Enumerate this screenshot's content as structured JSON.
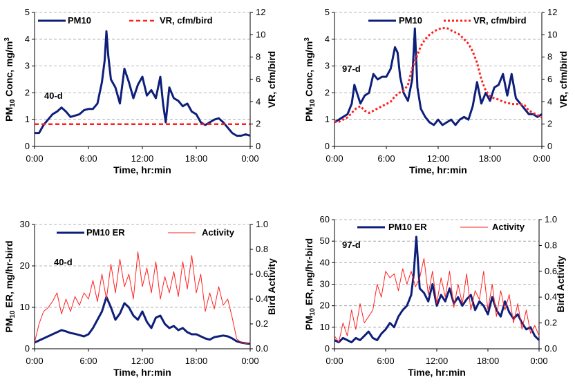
{
  "chart_data": [
    {
      "type": "line",
      "annotation": "40-d",
      "x_ticks": [
        "0:00",
        "6:00",
        "12:00",
        "18:00",
        "0:00"
      ],
      "xlabel": "Time, hr:min",
      "ylabel_left": {
        "pre": "PM",
        "sub": "10",
        "mid": " Conc, mg/m",
        "sup": "3"
      },
      "ylabel_right": "VR, cfm/bird",
      "ylim_left": [
        0,
        5
      ],
      "yticks_left": [
        0,
        1,
        2,
        3,
        4,
        5
      ],
      "ylim_right": [
        0,
        12
      ],
      "yticks_right": [
        0,
        2,
        4,
        6,
        8,
        10,
        12
      ],
      "xlim": [
        0,
        24
      ],
      "legend": [
        "PM10",
        "VR, cfm/bird"
      ],
      "colors": {
        "primary": "#0d1f7a",
        "secondary": "#ff2020"
      },
      "series": [
        {
          "name": "PM10",
          "axis": "left",
          "style": "solid",
          "x": [
            0,
            0.5,
            1,
            1.5,
            2,
            2.5,
            3,
            3.5,
            4,
            4.5,
            5,
            5.5,
            6,
            6.5,
            7,
            7.5,
            7.8,
            8,
            8.2,
            8.5,
            9,
            9.5,
            10,
            10.5,
            11,
            11.5,
            12,
            12.5,
            13,
            13.5,
            14,
            14.3,
            14.6,
            15,
            15.5,
            16,
            16.5,
            17,
            17.5,
            18,
            18.5,
            19,
            19.5,
            20,
            20.5,
            21,
            21.5,
            22,
            22.5,
            23,
            23.5,
            24
          ],
          "y": [
            0.5,
            0.5,
            0.8,
            1.0,
            1.2,
            1.3,
            1.45,
            1.3,
            1.1,
            1.15,
            1.2,
            1.35,
            1.4,
            1.4,
            1.6,
            2.4,
            3.2,
            4.3,
            3.4,
            2.5,
            2.2,
            1.6,
            2.9,
            2.4,
            1.8,
            2.3,
            2.6,
            1.9,
            2.1,
            1.8,
            2.6,
            1.6,
            0.9,
            2.2,
            1.8,
            1.7,
            1.5,
            1.6,
            1.3,
            1.2,
            0.9,
            0.8,
            0.9,
            1.0,
            1.05,
            0.9,
            0.7,
            0.5,
            0.4,
            0.4,
            0.45,
            0.4
          ]
        },
        {
          "name": "VR, cfm/bird",
          "axis": "right",
          "style": "dashed",
          "x": [
            0,
            24
          ],
          "y": [
            2,
            2
          ]
        }
      ]
    },
    {
      "type": "line",
      "annotation": "97-d",
      "x_ticks": [
        "0:00",
        "6:00",
        "12:00",
        "18:00",
        "0:00"
      ],
      "xlabel": "Time, hr:min",
      "ylabel_left": {
        "pre": "PM",
        "sub": "10",
        "mid": " Conc, mg/m",
        "sup": "3"
      },
      "ylabel_right": "VR, cfm/bird",
      "ylim_left": [
        0,
        5
      ],
      "yticks_left": [
        0,
        1,
        2,
        3,
        4,
        5
      ],
      "ylim_right": [
        0,
        12
      ],
      "yticks_right": [
        0,
        2,
        4,
        6,
        8,
        10,
        12
      ],
      "xlim": [
        0,
        24
      ],
      "legend": [
        "PM10",
        "VR, cfm/bird"
      ],
      "colors": {
        "primary": "#0d1f7a",
        "secondary": "#ff2020"
      },
      "series": [
        {
          "name": "PM10",
          "axis": "left",
          "style": "solid",
          "x": [
            0,
            0.5,
            1,
            1.5,
            2,
            2.3,
            2.6,
            3,
            3.5,
            4,
            4.5,
            5,
            5.5,
            6,
            6.5,
            7,
            7.3,
            7.6,
            8,
            8.5,
            9,
            9.3,
            9.6,
            10,
            10.5,
            11,
            11.5,
            12,
            12.5,
            13,
            13.5,
            14,
            14.5,
            15,
            15.5,
            16,
            16.5,
            17,
            17.5,
            18,
            18.5,
            19,
            19.5,
            20,
            20.5,
            21,
            21.5,
            22,
            22.5,
            23,
            23.5,
            24
          ],
          "y": [
            0.9,
            1.0,
            1.1,
            1.2,
            1.6,
            2.3,
            2.0,
            1.6,
            1.9,
            2.0,
            2.7,
            2.5,
            2.6,
            2.6,
            2.9,
            3.7,
            3.5,
            2.6,
            2.0,
            1.7,
            2.5,
            4.4,
            2.2,
            1.4,
            1.1,
            0.9,
            0.8,
            1.0,
            0.8,
            0.9,
            1.0,
            0.8,
            1.0,
            1.1,
            1.0,
            1.5,
            2.4,
            1.6,
            2.0,
            1.7,
            2.2,
            2.3,
            2.7,
            1.9,
            2.7,
            1.8,
            1.6,
            1.4,
            1.2,
            1.2,
            1.1,
            1.2
          ]
        },
        {
          "name": "VR, cfm/bird",
          "axis": "right",
          "style": "dotted",
          "x": [
            0,
            0.5,
            1,
            1.5,
            2,
            2.5,
            3,
            3.5,
            4,
            4.5,
            5,
            5.5,
            6,
            6.5,
            7,
            7.5,
            8,
            8.5,
            9,
            9.5,
            10,
            10.5,
            11,
            11.5,
            12,
            12.5,
            13,
            13.5,
            14,
            14.5,
            15,
            15.5,
            16,
            16.5,
            17,
            17.5,
            18,
            18.5,
            19,
            19.5,
            20,
            20.5,
            21,
            21.5,
            22,
            22.5,
            23,
            23.5,
            24
          ],
          "y": [
            2.2,
            2.2,
            2.4,
            2.6,
            3.0,
            3.4,
            3.6,
            3.2,
            3.0,
            3.2,
            3.4,
            3.6,
            3.8,
            4.0,
            4.5,
            4.8,
            5.0,
            5.5,
            7.0,
            8.0,
            9.0,
            9.6,
            10.0,
            10.3,
            10.5,
            10.6,
            10.6,
            10.4,
            10.2,
            10.0,
            9.6,
            9.2,
            8.5,
            7.5,
            6.0,
            5.0,
            4.5,
            4.3,
            4.2,
            4.0,
            3.9,
            3.8,
            3.8,
            3.8,
            3.7,
            3.2,
            3.0,
            2.8,
            2.6
          ]
        }
      ]
    },
    {
      "type": "line",
      "annotation": "40-d",
      "x_ticks": [
        "0:00",
        "6:00",
        "12:00",
        "18:00",
        "0:00"
      ],
      "xlabel": "Time, hr:min",
      "ylabel_left": {
        "pre": "PM",
        "sub": "10",
        "mid": " ER, mg/hr-bird",
        "sup": ""
      },
      "ylabel_right": "Bird Activity",
      "ylim_left": [
        0,
        30
      ],
      "yticks_left": [
        0,
        10,
        20,
        30
      ],
      "ylim_right": [
        0,
        1
      ],
      "yticks_right": [
        0.0,
        0.2,
        0.4,
        0.6,
        0.8,
        1.0
      ],
      "xlim": [
        0,
        24
      ],
      "legend": [
        "PM10 ER",
        "Activity"
      ],
      "colors": {
        "primary": "#0d1f7a",
        "secondary": "#ff2020"
      },
      "series": [
        {
          "name": "PM10 ER",
          "axis": "left",
          "style": "solid",
          "x": [
            0,
            0.5,
            1,
            1.5,
            2,
            2.5,
            3,
            3.5,
            4,
            4.5,
            5,
            5.5,
            6,
            6.5,
            7,
            7.5,
            8,
            8.5,
            9,
            9.5,
            10,
            10.5,
            11,
            11.5,
            12,
            12.5,
            13,
            13.5,
            14,
            14.5,
            15,
            15.5,
            16,
            16.5,
            17,
            17.5,
            18,
            18.5,
            19,
            19.5,
            20,
            20.5,
            21,
            21.5,
            22,
            22.5,
            23,
            23.5,
            24
          ],
          "y": [
            1.5,
            2,
            2.5,
            3,
            3.5,
            4,
            4.5,
            4.2,
            3.8,
            3.6,
            3.3,
            3.0,
            3.5,
            5.0,
            7.0,
            9.0,
            12.5,
            10.0,
            7.0,
            8.5,
            11.0,
            10.0,
            8.0,
            7.0,
            9.0,
            6.5,
            5.0,
            7.5,
            8.0,
            6.0,
            5.0,
            5.5,
            4.5,
            5.0,
            4.0,
            3.5,
            3.5,
            3.0,
            2.5,
            2.2,
            2.8,
            3.0,
            3.2,
            3.0,
            2.5,
            1.8,
            1.5,
            1.3,
            1.2
          ]
        },
        {
          "name": "Activity",
          "axis": "right",
          "style": "thin",
          "x": [
            0,
            0.5,
            1,
            1.5,
            2,
            2.5,
            3,
            3.5,
            4,
            4.5,
            5,
            5.5,
            6,
            6.5,
            7,
            7.5,
            8,
            8.5,
            9,
            9.5,
            10,
            10.5,
            11,
            11.5,
            12,
            12.5,
            13,
            13.5,
            14,
            14.5,
            15,
            15.5,
            16,
            16.5,
            17,
            17.5,
            18,
            18.5,
            19,
            19.5,
            20,
            20.5,
            21,
            21.5,
            22,
            22.5,
            23,
            23.5,
            24
          ],
          "y": [
            0.05,
            0.2,
            0.3,
            0.33,
            0.38,
            0.45,
            0.28,
            0.4,
            0.3,
            0.42,
            0.35,
            0.45,
            0.4,
            0.55,
            0.38,
            0.6,
            0.4,
            0.68,
            0.45,
            0.72,
            0.5,
            0.6,
            0.4,
            0.78,
            0.5,
            0.65,
            0.45,
            0.7,
            0.4,
            0.58,
            0.45,
            0.62,
            0.42,
            0.7,
            0.48,
            0.75,
            0.45,
            0.6,
            0.3,
            0.45,
            0.32,
            0.5,
            0.35,
            0.4,
            0.25,
            0.08,
            0.05,
            0.04,
            0.05
          ]
        }
      ]
    },
    {
      "type": "line",
      "annotation": "97-d",
      "x_ticks": [
        "0:00",
        "6:00",
        "12:00",
        "18:00",
        "0:00"
      ],
      "xlabel": "Time, hr:min",
      "ylabel_left": {
        "pre": "PM",
        "sub": "10",
        "mid": " ER, mg/hr-bird",
        "sup": ""
      },
      "ylabel_right": "Bird Activity",
      "ylim_left": [
        0,
        60
      ],
      "yticks_left": [
        0,
        10,
        20,
        30,
        40,
        50,
        60
      ],
      "ylim_right": [
        0,
        1
      ],
      "yticks_right": [
        0.0,
        0.2,
        0.4,
        0.6,
        0.8,
        1.0
      ],
      "xlim": [
        0,
        24
      ],
      "legend": [
        "PM10 ER",
        "Activity"
      ],
      "colors": {
        "primary": "#0d1f7a",
        "secondary": "#ff2020"
      },
      "series": [
        {
          "name": "PM10 ER",
          "axis": "left",
          "style": "solid",
          "x": [
            0,
            0.5,
            1,
            1.5,
            2,
            2.5,
            3,
            3.5,
            4,
            4.5,
            5,
            5.5,
            6,
            6.5,
            7,
            7.5,
            8,
            8.5,
            9,
            9.3,
            9.6,
            10,
            10.5,
            11,
            11.5,
            12,
            12.5,
            13,
            13.5,
            14,
            14.5,
            15,
            15.5,
            16,
            16.5,
            17,
            17.5,
            18,
            18.5,
            19,
            19.5,
            20,
            20.5,
            21,
            21.5,
            22,
            22.5,
            23,
            23.5,
            24
          ],
          "y": [
            4,
            3,
            5,
            4,
            3,
            5,
            4,
            6,
            8,
            5,
            4,
            7,
            9,
            12,
            10,
            15,
            18,
            20,
            25,
            35,
            52,
            28,
            26,
            22,
            30,
            20,
            25,
            22,
            28,
            21,
            24,
            20,
            23,
            25,
            18,
            22,
            20,
            16,
            24,
            18,
            15,
            22,
            17,
            14,
            16,
            12,
            9,
            10,
            6,
            4
          ]
        },
        {
          "name": "Activity",
          "axis": "right",
          "style": "thin",
          "x": [
            0,
            0.5,
            1,
            1.5,
            2,
            2.5,
            3,
            3.5,
            4,
            4.5,
            5,
            5.5,
            6,
            6.5,
            7,
            7.5,
            8,
            8.5,
            9,
            9.5,
            10,
            10.5,
            11,
            11.5,
            12,
            12.5,
            13,
            13.5,
            14,
            14.5,
            15,
            15.5,
            16,
            16.5,
            17,
            17.5,
            18,
            18.5,
            19,
            19.5,
            20,
            20.5,
            21,
            21.5,
            22,
            22.5,
            23,
            23.5,
            24
          ],
          "y": [
            0.1,
            0.05,
            0.2,
            0.1,
            0.3,
            0.15,
            0.35,
            0.2,
            0.25,
            0.3,
            0.5,
            0.4,
            0.6,
            0.55,
            0.58,
            0.45,
            0.62,
            0.5,
            0.6,
            0.48,
            0.55,
            0.7,
            0.42,
            0.6,
            0.35,
            0.55,
            0.4,
            0.6,
            0.32,
            0.5,
            0.35,
            0.58,
            0.3,
            0.45,
            0.38,
            0.6,
            0.3,
            0.5,
            0.25,
            0.45,
            0.3,
            0.42,
            0.2,
            0.35,
            0.15,
            0.3,
            0.12,
            0.18,
            0.1
          ]
        }
      ]
    }
  ]
}
